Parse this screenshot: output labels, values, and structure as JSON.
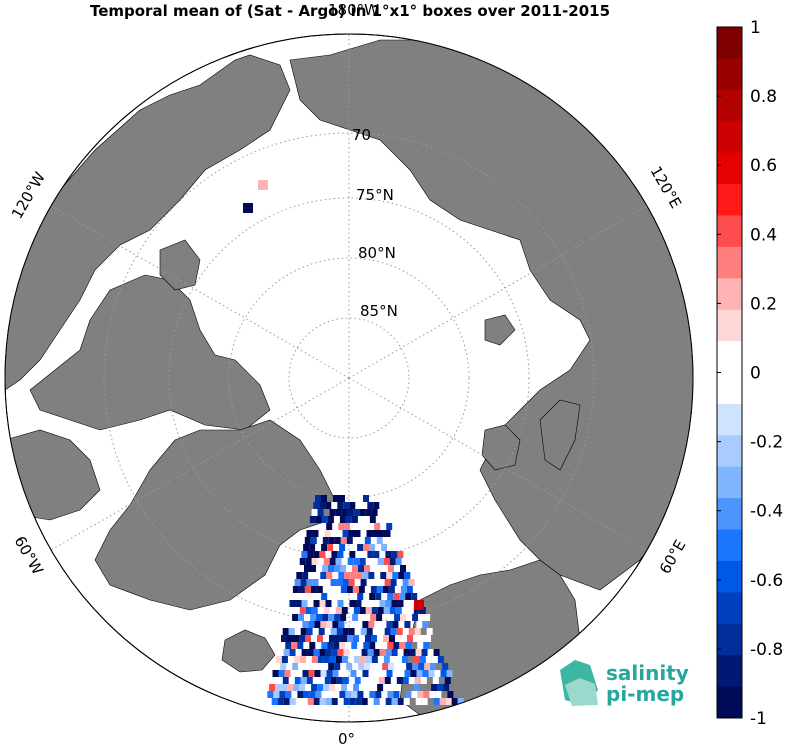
{
  "title": "Temporal mean of (Sat - Argo) in 1°x1° boxes over 2011-2015",
  "map": {
    "projection": "north-polar-stereographic",
    "land_color": "#808080",
    "ocean_color": "#ffffff",
    "lat_labels": [
      "70",
      "75°N",
      "80°N",
      "85°N"
    ],
    "lon_labels": {
      "top": "180°W",
      "bottom": "0°",
      "upper_left": "120°W",
      "upper_right": "120°E",
      "lower_left": "60°W",
      "lower_right": "60°E"
    }
  },
  "colorbar": {
    "min": -1,
    "max": 1,
    "tick_labels": [
      "1",
      "0.8",
      "0.6",
      "0.4",
      "0.2",
      "0",
      "-0.2",
      "-0.4",
      "-0.6",
      "-0.8",
      "-1"
    ],
    "colors": [
      "#7f0000",
      "#990000",
      "#b30000",
      "#cc0000",
      "#e60000",
      "#ff1a1a",
      "#ff4d4d",
      "#ff7f7f",
      "#ffb3b3",
      "#ffd6d6",
      "#ffffff",
      "#ffffff",
      "#cfe3ff",
      "#a8ccff",
      "#80b4ff",
      "#4d94ff",
      "#1a75ff",
      "#0059e6",
      "#0040bf",
      "#002d99",
      "#001a73",
      "#000a59"
    ]
  },
  "logo": {
    "line1": "salinity",
    "line2": "pi-mep"
  }
}
